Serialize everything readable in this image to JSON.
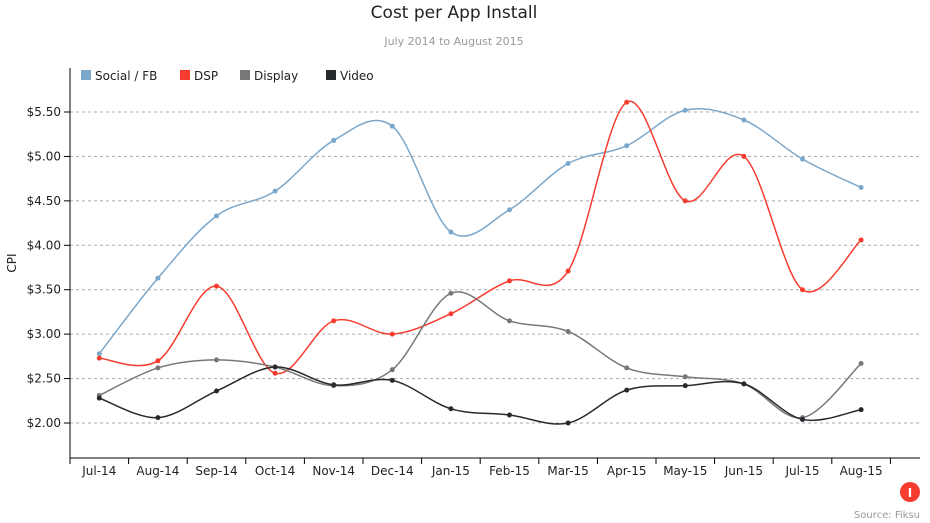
{
  "chart_data": {
    "type": "line",
    "title": "Cost per App Install",
    "subtitle": "July 2014 to August 2015",
    "xlabel": "",
    "ylabel": "CPI",
    "ylim": [
      1.6,
      5.9
    ],
    "yticks": [
      2.0,
      2.5,
      3.0,
      3.5,
      4.0,
      4.5,
      5.0,
      5.5
    ],
    "ytick_labels": [
      "$2.00",
      "$2.50",
      "$3.00",
      "$3.50",
      "$4.00",
      "$4.50",
      "$5.00",
      "$5.50"
    ],
    "grid": true,
    "legend_position": "top-left",
    "categories": [
      "Jul-14",
      "Aug-14",
      "Sep-14",
      "Oct-14",
      "Nov-14",
      "Dec-14",
      "Jan-15",
      "Feb-15",
      "Mar-15",
      "Apr-15",
      "May-15",
      "Jun-15",
      "Jul-15",
      "Aug-15"
    ],
    "series": [
      {
        "name": "Social / FB",
        "color": "#7ba7cb",
        "values": [
          2.78,
          3.63,
          4.33,
          4.61,
          5.18,
          5.34,
          4.15,
          4.4,
          4.92,
          5.12,
          5.52,
          5.41,
          4.97,
          4.65
        ]
      },
      {
        "name": "DSP",
        "color": "#f63c2f",
        "values": [
          2.73,
          2.7,
          3.54,
          2.56,
          3.15,
          3.0,
          3.23,
          3.6,
          3.71,
          5.61,
          4.5,
          5.0,
          3.5,
          4.06
        ]
      },
      {
        "name": "Display",
        "color": "#777777",
        "values": [
          2.31,
          2.62,
          2.71,
          2.63,
          2.42,
          2.6,
          3.46,
          3.15,
          3.03,
          2.62,
          2.52,
          2.44,
          2.06,
          2.67
        ]
      },
      {
        "name": "Video",
        "color": "#262a2e",
        "values": [
          2.28,
          2.06,
          2.36,
          2.63,
          2.43,
          2.48,
          2.16,
          2.09,
          2.0,
          2.37,
          2.42,
          2.44,
          2.04,
          2.15
        ]
      }
    ],
    "source": "Source: Fiksu",
    "logo_text": "I"
  }
}
